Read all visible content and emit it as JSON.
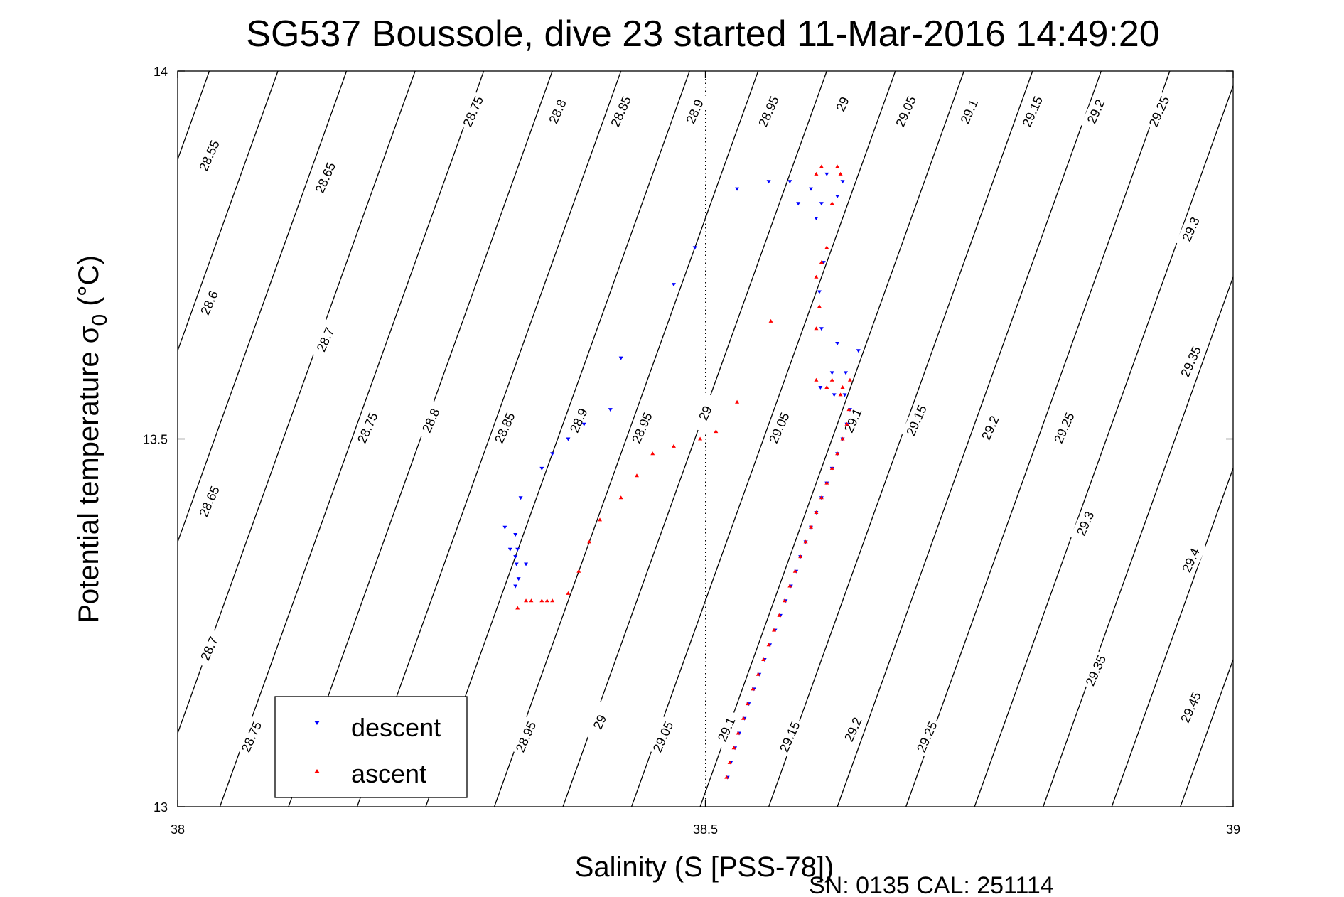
{
  "chart_data": {
    "type": "scatter",
    "title": "SG537 Boussole, dive 23 started 11-Mar-2016 14:49:20",
    "xlabel": "Salinity (S [PSS-78])",
    "ylabel": "Potential temperature σ",
    "ylabel_subscript": "0",
    "ylabel_unit": " (°C)",
    "xlim": [
      38,
      39
    ],
    "ylim": [
      13,
      14
    ],
    "x_ticks": [
      {
        "value": 38,
        "label": "38"
      },
      {
        "value": 38.5,
        "label": "38.5"
      },
      {
        "value": 39,
        "label": "39"
      }
    ],
    "y_ticks": [
      {
        "value": 13,
        "label": "13"
      },
      {
        "value": 13.5,
        "label": "13.5"
      },
      {
        "value": 14,
        "label": "14"
      }
    ],
    "grid": "dotted at center ticks",
    "legend_position": "bottom-left",
    "footer": "SN: 0135  CAL: 251114",
    "contour_labels": [
      {
        "S": 38.03,
        "T": 13.885,
        "label": "28.55"
      },
      {
        "S": 38.14,
        "T": 13.855,
        "label": "28.65"
      },
      {
        "S": 38.28,
        "T": 13.945,
        "label": "28.75"
      },
      {
        "S": 38.36,
        "T": 13.945,
        "label": "28.8"
      },
      {
        "S": 38.42,
        "T": 13.945,
        "label": "28.85"
      },
      {
        "S": 38.49,
        "T": 13.945,
        "label": "28.9"
      },
      {
        "S": 38.56,
        "T": 13.945,
        "label": "28.95"
      },
      {
        "S": 38.63,
        "T": 13.955,
        "label": "29"
      },
      {
        "S": 38.69,
        "T": 13.945,
        "label": "29.05"
      },
      {
        "S": 38.75,
        "T": 13.945,
        "label": "29.1"
      },
      {
        "S": 38.81,
        "T": 13.945,
        "label": "29.15"
      },
      {
        "S": 38.87,
        "T": 13.945,
        "label": "29.2"
      },
      {
        "S": 38.93,
        "T": 13.945,
        "label": "29.25"
      },
      {
        "S": 38.96,
        "T": 13.785,
        "label": "29.3"
      },
      {
        "S": 38.03,
        "T": 13.685,
        "label": "28.6"
      },
      {
        "S": 38.14,
        "T": 13.635,
        "label": "28.7"
      },
      {
        "S": 38.18,
        "T": 13.515,
        "label": "28.75"
      },
      {
        "S": 38.24,
        "T": 13.525,
        "label": "28.8"
      },
      {
        "S": 38.31,
        "T": 13.515,
        "label": "28.85"
      },
      {
        "S": 38.38,
        "T": 13.525,
        "label": "28.9"
      },
      {
        "S": 38.44,
        "T": 13.515,
        "label": "28.95"
      },
      {
        "S": 38.5,
        "T": 13.535,
        "label": "29"
      },
      {
        "S": 38.57,
        "T": 13.515,
        "label": "29.05"
      },
      {
        "S": 38.64,
        "T": 13.525,
        "label": "29.1"
      },
      {
        "S": 38.7,
        "T": 13.525,
        "label": "29.15"
      },
      {
        "S": 38.77,
        "T": 13.515,
        "label": "29.2"
      },
      {
        "S": 38.84,
        "T": 13.515,
        "label": "29.25"
      },
      {
        "S": 38.96,
        "T": 13.605,
        "label": "29.35"
      },
      {
        "S": 38.03,
        "T": 13.415,
        "label": "28.65"
      },
      {
        "S": 38.03,
        "T": 13.215,
        "label": "28.7"
      },
      {
        "S": 38.07,
        "T": 13.095,
        "label": "28.75"
      },
      {
        "S": 38.33,
        "T": 13.095,
        "label": "28.95"
      },
      {
        "S": 38.4,
        "T": 13.115,
        "label": "29"
      },
      {
        "S": 38.46,
        "T": 13.095,
        "label": "29.05"
      },
      {
        "S": 38.52,
        "T": 13.105,
        "label": "29.1"
      },
      {
        "S": 38.58,
        "T": 13.095,
        "label": "29.15"
      },
      {
        "S": 38.64,
        "T": 13.105,
        "label": "29.2"
      },
      {
        "S": 38.71,
        "T": 13.095,
        "label": "29.25"
      },
      {
        "S": 38.86,
        "T": 13.385,
        "label": "29.3"
      },
      {
        "S": 38.96,
        "T": 13.335,
        "label": "29.4"
      },
      {
        "S": 38.87,
        "T": 13.185,
        "label": "29.35"
      },
      {
        "S": 38.96,
        "T": 13.135,
        "label": "29.45"
      }
    ],
    "series": [
      {
        "name": "descent",
        "color": "#0000ff",
        "marker": "triangle-down",
        "points": [
          [
            38.521,
            13.04
          ],
          [
            38.524,
            13.06
          ],
          [
            38.528,
            13.08
          ],
          [
            38.532,
            13.1
          ],
          [
            38.537,
            13.12
          ],
          [
            38.541,
            13.14
          ],
          [
            38.546,
            13.16
          ],
          [
            38.551,
            13.18
          ],
          [
            38.556,
            13.2
          ],
          [
            38.561,
            13.22
          ],
          [
            38.566,
            13.24
          ],
          [
            38.571,
            13.26
          ],
          [
            38.576,
            13.28
          ],
          [
            38.581,
            13.3
          ],
          [
            38.586,
            13.32
          ],
          [
            38.59,
            13.34
          ],
          [
            38.595,
            13.36
          ],
          [
            38.6,
            13.38
          ],
          [
            38.605,
            13.4
          ],
          [
            38.61,
            13.42
          ],
          [
            38.615,
            13.44
          ],
          [
            38.62,
            13.46
          ],
          [
            38.625,
            13.48
          ],
          [
            38.63,
            13.5
          ],
          [
            38.634,
            13.52
          ],
          [
            38.637,
            13.54
          ],
          [
            38.632,
            13.56
          ],
          [
            38.622,
            13.56
          ],
          [
            38.609,
            13.57
          ],
          [
            38.62,
            13.59
          ],
          [
            38.633,
            13.59
          ],
          [
            38.645,
            13.62
          ],
          [
            38.625,
            13.63
          ],
          [
            38.61,
            13.65
          ],
          [
            38.608,
            13.7
          ],
          [
            38.612,
            13.74
          ],
          [
            38.605,
            13.8
          ],
          [
            38.61,
            13.82
          ],
          [
            38.625,
            13.83
          ],
          [
            38.63,
            13.85
          ],
          [
            38.615,
            13.86
          ],
          [
            38.6,
            13.84
          ],
          [
            38.588,
            13.82
          ],
          [
            38.58,
            13.85
          ],
          [
            38.56,
            13.85
          ],
          [
            38.53,
            13.84
          ],
          [
            38.49,
            13.76
          ],
          [
            38.47,
            13.71
          ],
          [
            38.42,
            13.61
          ],
          [
            38.41,
            13.54
          ],
          [
            38.385,
            13.52
          ],
          [
            38.37,
            13.5
          ],
          [
            38.355,
            13.48
          ],
          [
            38.345,
            13.46
          ],
          [
            38.325,
            13.42
          ],
          [
            38.31,
            13.38
          ],
          [
            38.315,
            13.35
          ],
          [
            38.32,
            13.34
          ],
          [
            38.33,
            13.33
          ],
          [
            38.32,
            13.37
          ],
          [
            38.322,
            13.35
          ],
          [
            38.321,
            13.33
          ],
          [
            38.323,
            13.31
          ],
          [
            38.32,
            13.3
          ]
        ]
      },
      {
        "name": "ascent",
        "color": "#ff0000",
        "marker": "triangle-up",
        "points": [
          [
            38.52,
            13.04
          ],
          [
            38.523,
            13.06
          ],
          [
            38.527,
            13.08
          ],
          [
            38.531,
            13.1
          ],
          [
            38.536,
            13.12
          ],
          [
            38.54,
            13.14
          ],
          [
            38.545,
            13.16
          ],
          [
            38.55,
            13.18
          ],
          [
            38.555,
            13.2
          ],
          [
            38.56,
            13.22
          ],
          [
            38.565,
            13.24
          ],
          [
            38.57,
            13.26
          ],
          [
            38.575,
            13.28
          ],
          [
            38.58,
            13.3
          ],
          [
            38.585,
            13.32
          ],
          [
            38.59,
            13.34
          ],
          [
            38.595,
            13.36
          ],
          [
            38.6,
            13.38
          ],
          [
            38.605,
            13.4
          ],
          [
            38.61,
            13.42
          ],
          [
            38.615,
            13.44
          ],
          [
            38.62,
            13.46
          ],
          [
            38.625,
            13.48
          ],
          [
            38.63,
            13.5
          ],
          [
            38.634,
            13.52
          ],
          [
            38.636,
            13.54
          ],
          [
            38.628,
            13.56
          ],
          [
            38.615,
            13.57
          ],
          [
            38.605,
            13.58
          ],
          [
            38.62,
            13.58
          ],
          [
            38.63,
            13.57
          ],
          [
            38.637,
            13.58
          ],
          [
            38.605,
            13.65
          ],
          [
            38.608,
            13.68
          ],
          [
            38.605,
            13.72
          ],
          [
            38.61,
            13.74
          ],
          [
            38.615,
            13.76
          ],
          [
            38.62,
            13.82
          ],
          [
            38.605,
            13.86
          ],
          [
            38.61,
            13.87
          ],
          [
            38.625,
            13.87
          ],
          [
            38.628,
            13.86
          ],
          [
            38.562,
            13.66
          ],
          [
            38.53,
            13.55
          ],
          [
            38.51,
            13.51
          ],
          [
            38.495,
            13.5
          ],
          [
            38.47,
            13.49
          ],
          [
            38.45,
            13.48
          ],
          [
            38.435,
            13.45
          ],
          [
            38.42,
            13.42
          ],
          [
            38.4,
            13.39
          ],
          [
            38.39,
            13.36
          ],
          [
            38.38,
            13.32
          ],
          [
            38.37,
            13.29
          ],
          [
            38.35,
            13.28
          ],
          [
            38.335,
            13.28
          ],
          [
            38.322,
            13.27
          ],
          [
            38.33,
            13.28
          ],
          [
            38.345,
            13.28
          ],
          [
            38.355,
            13.28
          ]
        ]
      }
    ]
  }
}
